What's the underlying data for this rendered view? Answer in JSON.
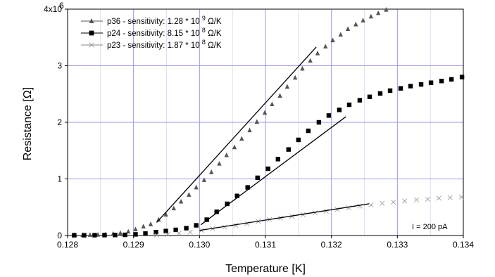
{
  "chart_data": {
    "type": "scatter",
    "xlabel": "Temperature [K]",
    "ylabel": "Resistance [Ω]",
    "xlim": [
      0.128,
      0.134
    ],
    "ylim": [
      0,
      4000000
    ],
    "x_ticks": [
      0.128,
      0.129,
      0.13,
      0.131,
      0.132,
      0.133,
      0.134
    ],
    "x_tick_labels": [
      "0.128",
      "0.129",
      "0.130",
      "0.131",
      "0.132",
      "0.133",
      "0.134"
    ],
    "y_ticks": [
      0,
      1000000,
      2000000,
      3000000,
      4000000
    ],
    "y_tick_labels": [
      "0",
      "1",
      "2",
      "3",
      "4x10"
    ],
    "y_top_exponent": "6",
    "grid": true,
    "legend_position": "top-left",
    "annotation": "I = 200 pA",
    "series": [
      {
        "name_base": "p36 - sensitivity: 1.28 * 10",
        "name_exp": "9",
        "name_unit": "Ω/K",
        "marker": "triangle",
        "color": "#555555",
        "x": [
          0.12811,
          0.12823,
          0.12834,
          0.12846,
          0.12857,
          0.12869,
          0.1288,
          0.12892,
          0.12903,
          0.12915,
          0.12926,
          0.12938,
          0.12949,
          0.12961,
          0.12972,
          0.12984,
          0.12995,
          0.13007,
          0.13018,
          0.1303,
          0.13041,
          0.13053,
          0.13064,
          0.13076,
          0.13087,
          0.13099,
          0.1311,
          0.13122,
          0.13133,
          0.13145,
          0.13156,
          0.13168,
          0.13179,
          0.13191,
          0.13202,
          0.13214,
          0.13225,
          0.13237,
          0.13248,
          0.1326,
          0.13271,
          0.13283
        ],
        "values": [
          10000,
          10000,
          12000,
          15000,
          20000,
          30000,
          45000,
          70000,
          110000,
          160000,
          200000,
          280000,
          370000,
          480000,
          600000,
          720000,
          850000,
          980000,
          1120000,
          1270000,
          1420000,
          1560000,
          1710000,
          1860000,
          2010000,
          2170000,
          2320000,
          2470000,
          2630000,
          2790000,
          2950000,
          3090000,
          3220000,
          3340000,
          3450000,
          3550000,
          3650000,
          3730000,
          3800000,
          3870000,
          3930000,
          3990000
        ],
        "fit": {
          "x": [
            0.12935,
            0.13177
          ],
          "y": [
            230000,
            3330000
          ]
        }
      },
      {
        "name_base": "p24 - sensitivity: 8.15 * 10",
        "name_exp": "8",
        "name_unit": "Ω/K",
        "marker": "square",
        "color": "#000000",
        "x": [
          0.1281,
          0.12825,
          0.12841,
          0.12856,
          0.12872,
          0.12887,
          0.12903,
          0.12918,
          0.12934,
          0.12949,
          0.12964,
          0.1298,
          0.12995,
          0.13011,
          0.13026,
          0.13042,
          0.13057,
          0.13073,
          0.13088,
          0.13104,
          0.13119,
          0.13135,
          0.1315,
          0.13165,
          0.13181,
          0.13196,
          0.13212,
          0.13227,
          0.13243,
          0.13258,
          0.13274,
          0.13289,
          0.13305,
          0.1332,
          0.13336,
          0.13351,
          0.13367,
          0.13382,
          0.13398
        ],
        "values": [
          5000,
          5000,
          6000,
          7000,
          9000,
          12000,
          20000,
          35000,
          60000,
          80000,
          100000,
          130000,
          180000,
          280000,
          420000,
          560000,
          700000,
          850000,
          1020000,
          1180000,
          1350000,
          1520000,
          1690000,
          1850000,
          2000000,
          2120000,
          2220000,
          2310000,
          2390000,
          2450000,
          2510000,
          2560000,
          2600000,
          2640000,
          2670000,
          2700000,
          2730000,
          2760000,
          2800000
        ],
        "fit": {
          "x": [
            0.13002,
            0.13222
          ],
          "y": [
            190000,
            2100000
          ]
        }
      },
      {
        "name_base": "p23 - sensitivity: 1.87 * 10",
        "name_exp": "8",
        "name_unit": "Ω/K",
        "marker": "bowtie",
        "color": "#888888",
        "x": [
          0.12935,
          0.12952,
          0.12969,
          0.12986,
          0.13003,
          0.1302,
          0.13038,
          0.13055,
          0.13072,
          0.13089,
          0.13106,
          0.13123,
          0.1314,
          0.13157,
          0.13175,
          0.13192,
          0.13209,
          0.13226,
          0.13243,
          0.1326,
          0.13277,
          0.13294,
          0.13311,
          0.13329,
          0.13346,
          0.13363,
          0.1338,
          0.13397
        ],
        "values": [
          10000,
          20000,
          40000,
          60000,
          90000,
          120000,
          150000,
          180000,
          210000,
          250000,
          280000,
          310000,
          340000,
          370000,
          400000,
          430000,
          460000,
          490000,
          520000,
          540000,
          570000,
          590000,
          610000,
          630000,
          640000,
          660000,
          670000,
          680000
        ],
        "fit": {
          "x": [
            0.13,
            0.13257
          ],
          "y": [
            90000,
            560000
          ]
        }
      }
    ]
  }
}
